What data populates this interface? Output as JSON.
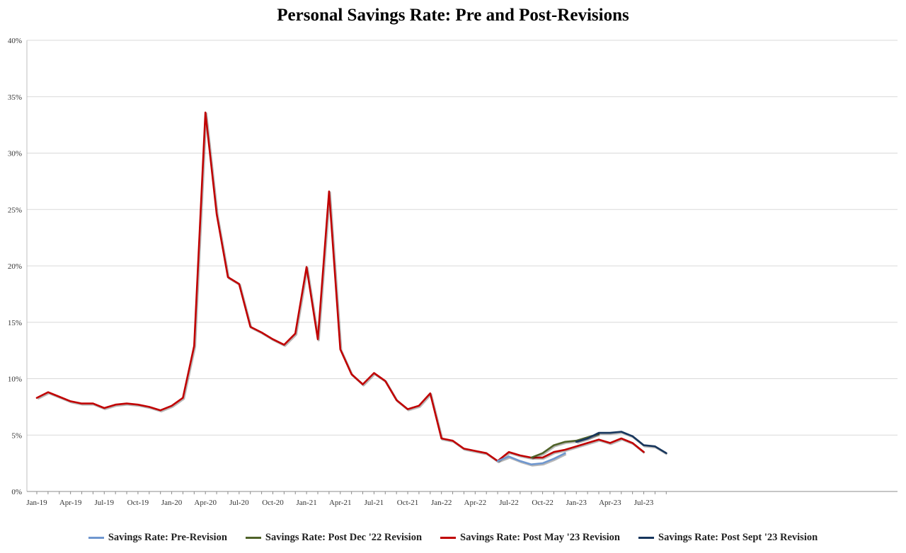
{
  "chart_data": {
    "type": "line",
    "title": "Personal Savings Rate: Pre and Post-Revisions",
    "ylim": [
      0,
      40
    ],
    "yticks": [
      "0%",
      "5%",
      "10%",
      "15%",
      "20%",
      "25%",
      "30%",
      "35%",
      "40%"
    ],
    "ytick_values": [
      0,
      5,
      10,
      15,
      20,
      25,
      30,
      35,
      40
    ],
    "x_months": [
      "Jan-19",
      "Feb-19",
      "Mar-19",
      "Apr-19",
      "May-19",
      "Jun-19",
      "Jul-19",
      "Aug-19",
      "Sep-19",
      "Oct-19",
      "Nov-19",
      "Dec-19",
      "Jan-20",
      "Feb-20",
      "Mar-20",
      "Apr-20",
      "May-20",
      "Jun-20",
      "Jul-20",
      "Aug-20",
      "Sep-20",
      "Oct-20",
      "Nov-20",
      "Dec-20",
      "Jan-21",
      "Feb-21",
      "Mar-21",
      "Apr-21",
      "May-21",
      "Jun-21",
      "Jul-21",
      "Aug-21",
      "Sep-21",
      "Oct-21",
      "Nov-21",
      "Dec-21",
      "Jan-22",
      "Feb-22",
      "Mar-22",
      "Apr-22",
      "May-22",
      "Jun-22",
      "Jul-22",
      "Aug-22",
      "Sep-22",
      "Oct-22",
      "Nov-22",
      "Dec-22",
      "Jan-23",
      "Feb-23",
      "Mar-23",
      "Apr-23",
      "May-23",
      "Jun-23",
      "Jul-23",
      "Aug-23",
      "Sep-23"
    ],
    "xtick_labels": [
      "Jan-19",
      "Apr-19",
      "Jul-19",
      "Oct-19",
      "Jan-20",
      "Apr-20",
      "Jul-20",
      "Oct-20",
      "Jan-21",
      "Apr-21",
      "Jul-21",
      "Oct-21",
      "Jan-22",
      "Apr-22",
      "Jul-22",
      "Oct-22",
      "Jan-23",
      "Apr-23",
      "Jul-23"
    ],
    "grid": true,
    "legend_position": "bottom",
    "series": [
      {
        "name": "Savings Rate: Post May '23 Revision",
        "color": "#c00000",
        "start_month": "Jan-19",
        "values": [
          8.3,
          8.8,
          8.4,
          8.0,
          7.8,
          7.8,
          7.4,
          7.7,
          7.8,
          7.7,
          7.5,
          7.2,
          7.6,
          8.3,
          12.9,
          33.6,
          24.6,
          19.0,
          18.4,
          14.6,
          14.1,
          13.5,
          13.0,
          14.0,
          19.9,
          13.5,
          26.6,
          12.6,
          10.4,
          9.5,
          10.5,
          9.8,
          8.1,
          7.3,
          7.6,
          8.7,
          4.7,
          4.5,
          3.8,
          3.6,
          3.4,
          2.7,
          3.5,
          3.2,
          3.0,
          3.0,
          3.5,
          3.7,
          4.0,
          4.3,
          4.6,
          4.3,
          4.7,
          4.3,
          3.5
        ]
      },
      {
        "name": "Savings Rate: Pre-Revision",
        "color": "#6f97cf",
        "start_month": "Jun-22",
        "values": [
          2.7,
          3.1,
          2.7,
          2.4,
          2.5,
          2.9,
          3.4
        ]
      },
      {
        "name": "Savings Rate: Post Dec '22 Revision",
        "color": "#4f6228",
        "start_month": "Sep-22",
        "values": [
          3.0,
          3.4,
          4.1,
          4.4,
          4.5,
          4.8,
          5.1
        ]
      },
      {
        "name": "Savings Rate: Post Sept '23 Revision",
        "color": "#17365d",
        "start_month": "Jan-23",
        "values": [
          4.4,
          4.7,
          5.2,
          5.2,
          5.3,
          4.9,
          4.1,
          4.0,
          3.4
        ]
      }
    ]
  },
  "legend": [
    {
      "label": "Savings Rate: Pre-Revision",
      "color": "#6f97cf"
    },
    {
      "label": "Savings Rate: Post Dec '22 Revision",
      "color": "#4f6228"
    },
    {
      "label": "Savings Rate: Post May '23 Revision",
      "color": "#c00000"
    },
    {
      "label": "Savings Rate: Post Sept '23 Revision",
      "color": "#17365d"
    }
  ]
}
